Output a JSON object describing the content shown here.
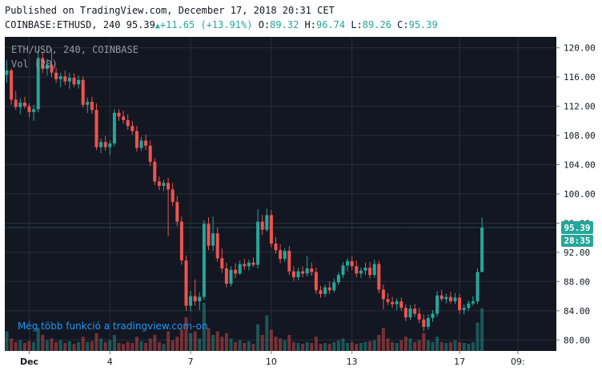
{
  "header": {
    "published": "Published on TradingView.com, December 17, 2018 20:31 CET",
    "symbol": "COINBASE:ETHUSD, 240",
    "last": "95.39",
    "change": "+11.65 (+13.91%)",
    "o_label": "O:",
    "o": "89.32",
    "h_label": "H:",
    "h": "96.74",
    "l_label": "L:",
    "l": "89.26",
    "c_label": "C:",
    "c": "95.39"
  },
  "legend": {
    "line1": "ETH/USD, 240, COINBASE",
    "line2": "Vol (20)"
  },
  "watermark": "Még több funkció a tradingview.com-on",
  "price_tag": "95.39",
  "timer_tag": "28:35",
  "colors": {
    "up": "#26a69a",
    "down": "#ef5350",
    "background": "#131722",
    "grid": "#2a2e39",
    "axis_bg": "#ffffff",
    "watermark": "#2196f3"
  },
  "chart_data": {
    "type": "candlestick",
    "interval": "240",
    "ylim": [
      78.5,
      121.5
    ],
    "y_ticks": [
      120,
      116,
      112,
      108,
      104,
      100,
      96,
      92,
      88,
      84,
      80
    ],
    "y_tick_labels": [
      "120.00",
      "116.00",
      "112.00",
      "108.00",
      "104.00",
      "100.00",
      "96.00",
      "92.00",
      "88.00",
      "84.00",
      "80.00"
    ],
    "x_ticks": [
      {
        "label": "Dec",
        "index": 5
      },
      {
        "label": "4",
        "index": 23
      },
      {
        "label": "7",
        "index": 41
      },
      {
        "label": "10",
        "index": 59
      },
      {
        "label": "13",
        "index": 77
      },
      {
        "label": "17",
        "index": 101
      },
      {
        "label": "09:",
        "index": 114
      }
    ],
    "candles": [
      {
        "o": 116.3,
        "h": 118.3,
        "l": 115.2,
        "c": 116.9
      },
      {
        "o": 116.9,
        "h": 117.2,
        "l": 112.2,
        "c": 112.9
      },
      {
        "o": 112.9,
        "h": 114.1,
        "l": 111.5,
        "c": 111.9
      },
      {
        "o": 111.9,
        "h": 113.1,
        "l": 110.9,
        "c": 112.5
      },
      {
        "o": 112.5,
        "h": 113.3,
        "l": 111.7,
        "c": 112.0
      },
      {
        "o": 112.0,
        "h": 112.4,
        "l": 110.5,
        "c": 111.2
      },
      {
        "o": 111.2,
        "h": 112.2,
        "l": 110.0,
        "c": 111.6
      },
      {
        "o": 111.6,
        "h": 119.7,
        "l": 111.2,
        "c": 118.6
      },
      {
        "o": 118.6,
        "h": 119.3,
        "l": 116.5,
        "c": 117.1
      },
      {
        "o": 117.1,
        "h": 118.5,
        "l": 116.2,
        "c": 117.7
      },
      {
        "o": 117.7,
        "h": 119.9,
        "l": 116.0,
        "c": 116.6
      },
      {
        "o": 116.6,
        "h": 117.3,
        "l": 115.2,
        "c": 115.7
      },
      {
        "o": 115.7,
        "h": 116.6,
        "l": 114.6,
        "c": 116.1
      },
      {
        "o": 116.1,
        "h": 116.9,
        "l": 114.9,
        "c": 115.4
      },
      {
        "o": 115.4,
        "h": 116.6,
        "l": 114.4,
        "c": 115.9
      },
      {
        "o": 115.9,
        "h": 116.5,
        "l": 114.6,
        "c": 115.0
      },
      {
        "o": 115.0,
        "h": 116.2,
        "l": 114.4,
        "c": 115.6
      },
      {
        "o": 115.6,
        "h": 116.1,
        "l": 111.8,
        "c": 112.2
      },
      {
        "o": 112.2,
        "h": 113.2,
        "l": 111.1,
        "c": 112.6
      },
      {
        "o": 112.6,
        "h": 113.3,
        "l": 111.0,
        "c": 111.5
      },
      {
        "o": 111.5,
        "h": 112.4,
        "l": 106.0,
        "c": 106.4
      },
      {
        "o": 106.4,
        "h": 107.6,
        "l": 105.6,
        "c": 107.1
      },
      {
        "o": 107.1,
        "h": 107.9,
        "l": 105.9,
        "c": 106.4
      },
      {
        "o": 106.4,
        "h": 107.3,
        "l": 105.3,
        "c": 106.9
      },
      {
        "o": 106.9,
        "h": 111.6,
        "l": 106.5,
        "c": 111.1
      },
      {
        "o": 111.1,
        "h": 111.6,
        "l": 110.0,
        "c": 110.6
      },
      {
        "o": 110.6,
        "h": 111.4,
        "l": 109.6,
        "c": 110.1
      },
      {
        "o": 110.1,
        "h": 110.9,
        "l": 108.8,
        "c": 109.3
      },
      {
        "o": 109.3,
        "h": 110.0,
        "l": 108.1,
        "c": 108.6
      },
      {
        "o": 108.6,
        "h": 109.3,
        "l": 105.8,
        "c": 106.3
      },
      {
        "o": 106.3,
        "h": 107.8,
        "l": 105.9,
        "c": 107.3
      },
      {
        "o": 107.3,
        "h": 108.1,
        "l": 106.0,
        "c": 106.6
      },
      {
        "o": 106.6,
        "h": 107.3,
        "l": 103.8,
        "c": 104.4
      },
      {
        "o": 104.4,
        "h": 104.9,
        "l": 101.2,
        "c": 101.7
      },
      {
        "o": 101.7,
        "h": 102.4,
        "l": 100.5,
        "c": 101.1
      },
      {
        "o": 101.1,
        "h": 101.9,
        "l": 100.4,
        "c": 101.5
      },
      {
        "o": 101.5,
        "h": 102.2,
        "l": 94.2,
        "c": 100.6
      },
      {
        "o": 100.6,
        "h": 101.5,
        "l": 98.3,
        "c": 98.9
      },
      {
        "o": 98.9,
        "h": 99.7,
        "l": 95.6,
        "c": 96.2
      },
      {
        "o": 96.2,
        "h": 96.9,
        "l": 90.3,
        "c": 90.9
      },
      {
        "o": 90.9,
        "h": 91.6,
        "l": 84.0,
        "c": 84.7
      },
      {
        "o": 84.7,
        "h": 86.7,
        "l": 83.9,
        "c": 86.0
      },
      {
        "o": 86.0,
        "h": 88.3,
        "l": 84.7,
        "c": 85.3
      },
      {
        "o": 85.3,
        "h": 86.5,
        "l": 84.1,
        "c": 85.9
      },
      {
        "o": 85.9,
        "h": 96.4,
        "l": 85.5,
        "c": 95.9
      },
      {
        "o": 95.9,
        "h": 96.8,
        "l": 92.3,
        "c": 92.9
      },
      {
        "o": 92.9,
        "h": 96.9,
        "l": 92.2,
        "c": 94.6
      },
      {
        "o": 94.6,
        "h": 95.4,
        "l": 90.7,
        "c": 91.2
      },
      {
        "o": 91.2,
        "h": 92.5,
        "l": 89.2,
        "c": 89.8
      },
      {
        "o": 89.8,
        "h": 90.6,
        "l": 87.2,
        "c": 87.7
      },
      {
        "o": 87.7,
        "h": 90.1,
        "l": 87.3,
        "c": 89.6
      },
      {
        "o": 89.6,
        "h": 90.5,
        "l": 88.5,
        "c": 89.1
      },
      {
        "o": 89.1,
        "h": 90.9,
        "l": 88.9,
        "c": 90.4
      },
      {
        "o": 90.4,
        "h": 91.1,
        "l": 89.6,
        "c": 90.1
      },
      {
        "o": 90.1,
        "h": 91.0,
        "l": 89.5,
        "c": 90.6
      },
      {
        "o": 90.6,
        "h": 91.3,
        "l": 90.0,
        "c": 90.3
      },
      {
        "o": 90.3,
        "h": 97.9,
        "l": 89.8,
        "c": 96.2
      },
      {
        "o": 96.2,
        "h": 97.1,
        "l": 94.4,
        "c": 95.1
      },
      {
        "o": 95.1,
        "h": 98.0,
        "l": 94.8,
        "c": 97.1
      },
      {
        "o": 97.1,
        "h": 97.8,
        "l": 92.7,
        "c": 93.2
      },
      {
        "o": 93.2,
        "h": 94.1,
        "l": 91.8,
        "c": 92.3
      },
      {
        "o": 92.3,
        "h": 93.1,
        "l": 90.5,
        "c": 91.1
      },
      {
        "o": 91.1,
        "h": 92.6,
        "l": 90.7,
        "c": 92.2
      },
      {
        "o": 92.2,
        "h": 92.9,
        "l": 88.9,
        "c": 89.4
      },
      {
        "o": 89.4,
        "h": 90.1,
        "l": 88.1,
        "c": 88.6
      },
      {
        "o": 88.6,
        "h": 89.9,
        "l": 88.2,
        "c": 89.4
      },
      {
        "o": 89.4,
        "h": 90.1,
        "l": 88.6,
        "c": 89.1
      },
      {
        "o": 89.1,
        "h": 91.5,
        "l": 88.7,
        "c": 89.8
      },
      {
        "o": 89.8,
        "h": 90.6,
        "l": 88.8,
        "c": 89.3
      },
      {
        "o": 89.3,
        "h": 89.9,
        "l": 86.3,
        "c": 86.8
      },
      {
        "o": 86.8,
        "h": 87.4,
        "l": 85.8,
        "c": 86.3
      },
      {
        "o": 86.3,
        "h": 87.6,
        "l": 85.9,
        "c": 87.2
      },
      {
        "o": 87.2,
        "h": 88.0,
        "l": 86.3,
        "c": 86.8
      },
      {
        "o": 86.8,
        "h": 88.4,
        "l": 86.5,
        "c": 87.9
      },
      {
        "o": 87.9,
        "h": 89.3,
        "l": 87.5,
        "c": 88.9
      },
      {
        "o": 88.9,
        "h": 90.7,
        "l": 88.5,
        "c": 90.2
      },
      {
        "o": 90.2,
        "h": 91.2,
        "l": 89.4,
        "c": 90.8
      },
      {
        "o": 90.8,
        "h": 91.5,
        "l": 89.6,
        "c": 90.1
      },
      {
        "o": 90.1,
        "h": 90.9,
        "l": 88.6,
        "c": 89.1
      },
      {
        "o": 89.1,
        "h": 89.9,
        "l": 88.5,
        "c": 89.5
      },
      {
        "o": 89.5,
        "h": 90.6,
        "l": 88.9,
        "c": 89.9
      },
      {
        "o": 89.9,
        "h": 90.7,
        "l": 88.4,
        "c": 88.9
      },
      {
        "o": 88.9,
        "h": 91.0,
        "l": 88.5,
        "c": 90.4
      },
      {
        "o": 90.4,
        "h": 90.9,
        "l": 86.4,
        "c": 86.9
      },
      {
        "o": 86.9,
        "h": 87.6,
        "l": 84.2,
        "c": 85.6
      },
      {
        "o": 85.6,
        "h": 86.4,
        "l": 84.8,
        "c": 85.2
      },
      {
        "o": 85.2,
        "h": 85.9,
        "l": 84.4,
        "c": 84.9
      },
      {
        "o": 84.9,
        "h": 85.7,
        "l": 84.1,
        "c": 85.3
      },
      {
        "o": 85.3,
        "h": 85.8,
        "l": 84.0,
        "c": 84.4
      },
      {
        "o": 84.4,
        "h": 84.9,
        "l": 82.6,
        "c": 83.1
      },
      {
        "o": 83.1,
        "h": 84.8,
        "l": 82.7,
        "c": 84.3
      },
      {
        "o": 84.3,
        "h": 84.9,
        "l": 83.2,
        "c": 83.6
      },
      {
        "o": 83.6,
        "h": 84.4,
        "l": 82.3,
        "c": 82.8
      },
      {
        "o": 82.8,
        "h": 83.5,
        "l": 81.2,
        "c": 81.8
      },
      {
        "o": 81.8,
        "h": 83.5,
        "l": 81.4,
        "c": 83.0
      },
      {
        "o": 83.0,
        "h": 84.1,
        "l": 82.5,
        "c": 83.6
      },
      {
        "o": 83.6,
        "h": 86.7,
        "l": 83.2,
        "c": 86.1
      },
      {
        "o": 86.1,
        "h": 86.9,
        "l": 85.3,
        "c": 85.6
      },
      {
        "o": 85.6,
        "h": 86.4,
        "l": 85.0,
        "c": 85.9
      },
      {
        "o": 85.9,
        "h": 86.6,
        "l": 85.0,
        "c": 85.3
      },
      {
        "o": 85.3,
        "h": 86.4,
        "l": 84.9,
        "c": 85.8
      },
      {
        "o": 85.8,
        "h": 86.3,
        "l": 83.6,
        "c": 84.1
      },
      {
        "o": 84.1,
        "h": 84.9,
        "l": 83.5,
        "c": 84.4
      },
      {
        "o": 84.4,
        "h": 85.4,
        "l": 84.0,
        "c": 85.0
      },
      {
        "o": 85.0,
        "h": 86.0,
        "l": 84.7,
        "c": 85.3
      },
      {
        "o": 85.3,
        "h": 89.8,
        "l": 84.9,
        "c": 89.3
      },
      {
        "o": 89.32,
        "h": 96.74,
        "l": 89.26,
        "c": 95.39
      }
    ],
    "volume": [
      22,
      14,
      10,
      12,
      9,
      11,
      10,
      26,
      18,
      12,
      14,
      10,
      12,
      9,
      11,
      8,
      10,
      16,
      10,
      11,
      20,
      14,
      10,
      12,
      18,
      9,
      8,
      10,
      9,
      16,
      11,
      9,
      14,
      18,
      10,
      8,
      22,
      12,
      16,
      24,
      38,
      20,
      22,
      14,
      54,
      26,
      18,
      22,
      16,
      20,
      14,
      10,
      12,
      9,
      11,
      8,
      30,
      18,
      40,
      24,
      16,
      14,
      12,
      18,
      10,
      9,
      8,
      10,
      9,
      16,
      8,
      9,
      8,
      10,
      12,
      14,
      9,
      10,
      8,
      9,
      10,
      11,
      12,
      18,
      26,
      14,
      10,
      9,
      12,
      16,
      14,
      10,
      12,
      20,
      12,
      10,
      16,
      10,
      9,
      10,
      12,
      10,
      9,
      8,
      10,
      32,
      48
    ]
  }
}
